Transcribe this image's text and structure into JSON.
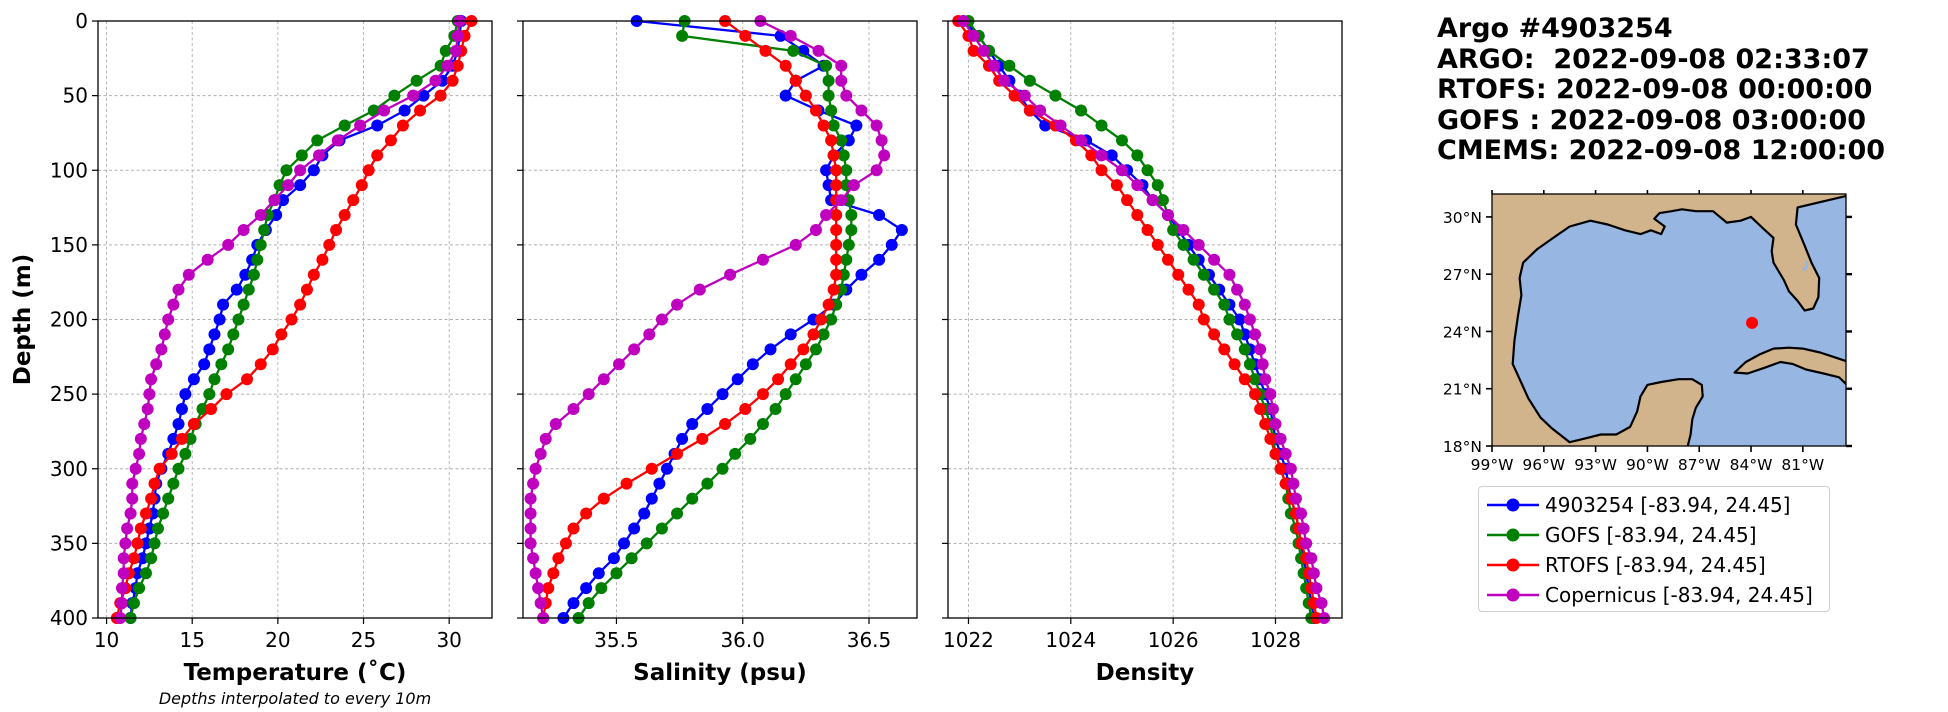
{
  "title": {
    "lines": [
      "Argo #4903254",
      "ARGO:  2022-09-08 02:33:07",
      "RTOFS: 2022-09-08 00:00:00",
      "GOFS : 2022-09-08 03:00:00",
      "CMEMS: 2022-09-08 12:00:00"
    ]
  },
  "colors": {
    "argo": "#0000ff",
    "gofs": "#008000",
    "rtofs": "#ff0000",
    "copernicus": "#bf00bf",
    "land": "#d2b48c",
    "ocean": "#97b6e1",
    "grid": "#b0b0b0"
  },
  "chart_data": [
    {
      "type": "line",
      "xlabel": "Temperature (˚C)",
      "ylabel": "Depth (m)",
      "note": "Depths interpolated to every 10m",
      "xlim": [
        9.5,
        32.5
      ],
      "ylim": [
        400,
        0
      ],
      "xticks": [
        10,
        15,
        20,
        25,
        30
      ],
      "yticks": [
        0,
        50,
        100,
        150,
        200,
        250,
        300,
        350,
        400
      ],
      "grid": true,
      "depth": [
        0,
        10,
        20,
        30,
        40,
        50,
        60,
        70,
        80,
        90,
        100,
        110,
        120,
        130,
        140,
        150,
        160,
        170,
        180,
        190,
        200,
        210,
        220,
        230,
        240,
        250,
        260,
        270,
        280,
        290,
        300,
        310,
        320,
        330,
        340,
        350,
        360,
        370,
        380,
        390,
        400
      ],
      "series": [
        {
          "name": "4903254 [-83.94, 24.45]",
          "key": "argo",
          "values": [
            30.7,
            30.6,
            30.5,
            30.2,
            29.6,
            28.5,
            27.4,
            25.8,
            23.6,
            22.6,
            22.1,
            21.3,
            20.3,
            19.9,
            19.3,
            18.8,
            18.5,
            18.1,
            17.6,
            16.8,
            16.6,
            16.3,
            16.0,
            15.7,
            15.1,
            14.6,
            14.4,
            14.2,
            13.9,
            13.6,
            13.2,
            12.9,
            12.8,
            12.7,
            12.5,
            12.3,
            12.1,
            11.8,
            11.7,
            11.5,
            11.4
          ]
        },
        {
          "name": "GOFS [-83.94, 24.45]",
          "key": "gofs",
          "values": [
            30.5,
            30.3,
            29.8,
            29.5,
            28.1,
            26.8,
            25.6,
            23.9,
            22.3,
            21.4,
            20.5,
            20.1,
            19.8,
            19.4,
            19.2,
            19.0,
            18.8,
            18.6,
            18.3,
            18.0,
            17.7,
            17.4,
            17.1,
            16.7,
            16.3,
            16.0,
            15.6,
            15.2,
            14.9,
            14.6,
            14.2,
            13.9,
            13.6,
            13.3,
            13.0,
            12.8,
            12.6,
            12.3,
            11.9,
            11.6,
            11.4
          ]
        },
        {
          "name": "RTOFS [-83.94, 24.45]",
          "key": "rtofs",
          "values": [
            31.3,
            30.9,
            30.7,
            30.5,
            30.2,
            29.5,
            28.3,
            27.3,
            26.6,
            25.8,
            25.3,
            24.9,
            24.4,
            23.9,
            23.4,
            23.0,
            22.6,
            22.1,
            21.7,
            21.3,
            20.8,
            20.2,
            19.7,
            19.0,
            18.2,
            17.0,
            16.1,
            15.1,
            14.4,
            13.8,
            13.1,
            12.8,
            12.6,
            12.3,
            12.0,
            11.8,
            11.6,
            11.3,
            11.1,
            10.8,
            10.6
          ]
        },
        {
          "name": "Copernicus [-83.94, 24.45]",
          "key": "copernicus",
          "values": [
            30.6,
            30.5,
            30.4,
            29.9,
            29.2,
            27.9,
            26.2,
            24.8,
            23.5,
            22.4,
            21.3,
            20.6,
            19.8,
            19.0,
            18.0,
            17.1,
            15.9,
            14.8,
            14.2,
            13.9,
            13.6,
            13.4,
            13.2,
            12.9,
            12.6,
            12.5,
            12.4,
            12.2,
            12.0,
            11.9,
            11.7,
            11.5,
            11.5,
            11.4,
            11.2,
            11.1,
            11.0,
            11.0,
            10.9,
            10.9,
            10.8
          ]
        }
      ]
    },
    {
      "type": "line",
      "xlabel": "Salinity (psu)",
      "xlim": [
        35.13,
        36.69
      ],
      "ylim": [
        400,
        0
      ],
      "xticks": [
        35.5,
        36.0,
        36.5
      ],
      "xticklabels": [
        "35.5",
        "36.0",
        "36.5"
      ],
      "yticks": [
        0,
        50,
        100,
        150,
        200,
        250,
        300,
        350,
        400
      ],
      "grid": true,
      "depth": [
        0,
        10,
        20,
        30,
        40,
        50,
        60,
        70,
        80,
        90,
        100,
        110,
        120,
        130,
        140,
        150,
        160,
        170,
        180,
        190,
        200,
        210,
        220,
        230,
        240,
        250,
        260,
        270,
        280,
        290,
        300,
        310,
        320,
        330,
        340,
        350,
        360,
        370,
        380,
        390,
        400
      ],
      "series": [
        {
          "name": "4903254 [-83.94, 24.45]",
          "key": "argo",
          "values": [
            35.58,
            36.15,
            36.24,
            36.32,
            36.21,
            36.17,
            36.3,
            36.45,
            36.42,
            36.36,
            36.33,
            36.34,
            36.35,
            36.54,
            36.63,
            36.59,
            36.54,
            36.47,
            36.41,
            36.36,
            36.28,
            36.19,
            36.11,
            36.04,
            35.98,
            35.92,
            35.86,
            35.8,
            35.76,
            35.73,
            35.7,
            35.67,
            35.64,
            35.61,
            35.57,
            35.53,
            35.49,
            35.43,
            35.38,
            35.33,
            35.29
          ]
        },
        {
          "name": "GOFS [-83.94, 24.45]",
          "key": "gofs",
          "values": [
            35.77,
            35.76,
            36.2,
            36.33,
            36.34,
            36.34,
            36.35,
            36.36,
            36.39,
            36.4,
            36.41,
            36.41,
            36.42,
            36.43,
            36.43,
            36.42,
            36.41,
            36.4,
            36.39,
            36.37,
            36.35,
            36.32,
            36.29,
            36.25,
            36.21,
            36.17,
            36.13,
            36.08,
            36.03,
            35.97,
            35.92,
            35.86,
            35.8,
            35.74,
            35.68,
            35.62,
            35.56,
            35.5,
            35.44,
            35.39,
            35.35
          ]
        },
        {
          "name": "RTOFS [-83.94, 24.45]",
          "key": "rtofs",
          "values": [
            35.93,
            36.01,
            36.09,
            36.17,
            36.21,
            36.25,
            36.29,
            36.32,
            36.35,
            36.36,
            36.37,
            36.37,
            36.37,
            36.37,
            36.37,
            36.37,
            36.37,
            36.37,
            36.36,
            36.34,
            36.31,
            36.28,
            36.24,
            36.19,
            36.14,
            36.08,
            36.01,
            35.93,
            35.84,
            35.74,
            35.64,
            35.54,
            35.45,
            35.38,
            35.33,
            35.3,
            35.27,
            35.25,
            35.23,
            35.22,
            35.21
          ]
        },
        {
          "name": "Copernicus [-83.94, 24.45]",
          "key": "copernicus",
          "values": [
            36.07,
            36.19,
            36.3,
            36.39,
            36.39,
            36.41,
            36.47,
            36.53,
            36.55,
            36.56,
            36.53,
            36.44,
            36.39,
            36.33,
            36.29,
            36.21,
            36.08,
            35.95,
            35.83,
            35.74,
            35.68,
            35.63,
            35.57,
            35.51,
            35.45,
            35.39,
            35.33,
            35.26,
            35.22,
            35.2,
            35.18,
            35.17,
            35.16,
            35.16,
            35.16,
            35.16,
            35.17,
            35.18,
            35.19,
            35.2,
            35.21
          ]
        }
      ]
    },
    {
      "type": "line",
      "xlabel": "Density",
      "xlim": [
        1021.6,
        1029.3
      ],
      "ylim": [
        400,
        0
      ],
      "xticks": [
        1022,
        1024,
        1026,
        1028
      ],
      "yticks": [
        0,
        50,
        100,
        150,
        200,
        250,
        300,
        350,
        400
      ],
      "grid": true,
      "depth": [
        0,
        10,
        20,
        30,
        40,
        50,
        60,
        70,
        80,
        90,
        100,
        110,
        120,
        130,
        140,
        150,
        160,
        170,
        180,
        190,
        200,
        210,
        220,
        230,
        240,
        250,
        260,
        270,
        280,
        290,
        300,
        310,
        320,
        330,
        340,
        350,
        360,
        370,
        380,
        390,
        400
      ],
      "series": [
        {
          "name": "4903254 [-83.94, 24.45]",
          "key": "argo",
          "values": [
            1021.9,
            1022.2,
            1022.4,
            1022.6,
            1022.8,
            1023.0,
            1023.2,
            1023.5,
            1024.3,
            1024.8,
            1025.1,
            1025.4,
            1025.6,
            1025.9,
            1026.1,
            1026.3,
            1026.5,
            1026.7,
            1026.9,
            1027.1,
            1027.3,
            1027.4,
            1027.5,
            1027.6,
            1027.7,
            1027.8,
            1027.9,
            1027.95,
            1028.0,
            1028.1,
            1028.2,
            1028.25,
            1028.3,
            1028.4,
            1028.45,
            1028.5,
            1028.55,
            1028.6,
            1028.65,
            1028.7,
            1028.75
          ]
        },
        {
          "name": "GOFS [-83.94, 24.45]",
          "key": "gofs",
          "values": [
            1022.0,
            1022.2,
            1022.4,
            1022.8,
            1023.2,
            1023.7,
            1024.2,
            1024.6,
            1025.0,
            1025.3,
            1025.5,
            1025.7,
            1025.8,
            1025.9,
            1026.0,
            1026.2,
            1026.4,
            1026.6,
            1026.8,
            1027.0,
            1027.1,
            1027.25,
            1027.4,
            1027.5,
            1027.6,
            1027.7,
            1027.8,
            1027.9,
            1027.95,
            1028.0,
            1028.1,
            1028.2,
            1028.25,
            1028.3,
            1028.4,
            1028.45,
            1028.5,
            1028.55,
            1028.6,
            1028.65,
            1028.7
          ]
        },
        {
          "name": "RTOFS [-83.94, 24.45]",
          "key": "rtofs",
          "values": [
            1021.8,
            1022.0,
            1022.1,
            1022.4,
            1022.6,
            1022.9,
            1023.2,
            1023.7,
            1024.1,
            1024.4,
            1024.6,
            1024.9,
            1025.1,
            1025.3,
            1025.5,
            1025.7,
            1025.9,
            1026.1,
            1026.3,
            1026.5,
            1026.6,
            1026.8,
            1027.0,
            1027.2,
            1027.4,
            1027.6,
            1027.7,
            1027.8,
            1027.9,
            1028.0,
            1028.1,
            1028.2,
            1028.3,
            1028.4,
            1028.45,
            1028.5,
            1028.6,
            1028.65,
            1028.7,
            1028.75,
            1028.8
          ]
        },
        {
          "name": "Copernicus [-83.94, 24.45]",
          "key": "copernicus",
          "values": [
            1021.9,
            1022.1,
            1022.3,
            1022.5,
            1022.7,
            1023.1,
            1023.4,
            1023.8,
            1024.2,
            1024.6,
            1025.0,
            1025.3,
            1025.6,
            1025.9,
            1026.2,
            1026.5,
            1026.8,
            1027.1,
            1027.25,
            1027.4,
            1027.5,
            1027.6,
            1027.7,
            1027.75,
            1027.8,
            1027.9,
            1027.95,
            1028.0,
            1028.1,
            1028.2,
            1028.3,
            1028.35,
            1028.4,
            1028.5,
            1028.55,
            1028.6,
            1028.7,
            1028.75,
            1028.8,
            1028.9,
            1028.95
          ]
        }
      ]
    }
  ],
  "map": {
    "lat_labels": [
      "30°N",
      "27°N",
      "24°N",
      "21°N",
      "18°N"
    ],
    "lon_labels": [
      "99°W",
      "96°W",
      "93°W",
      "90°W",
      "87°W",
      "84°W",
      "81°W"
    ],
    "lat_values": [
      30,
      27,
      24,
      21,
      18
    ],
    "lon_values": [
      -99,
      -96,
      -93,
      -90,
      -87,
      -84,
      -81
    ],
    "extent": {
      "lon": [
        -99,
        -78.5
      ],
      "lat": [
        18,
        31.2
      ]
    },
    "float_position": {
      "lon": -83.94,
      "lat": 24.45
    }
  },
  "legend": {
    "items": [
      {
        "label": "4903254 [-83.94, 24.45]",
        "key": "argo"
      },
      {
        "label": "GOFS [-83.94, 24.45]",
        "key": "gofs"
      },
      {
        "label": "RTOFS [-83.94, 24.45]",
        "key": "rtofs"
      },
      {
        "label": "Copernicus [-83.94, 24.45]",
        "key": "copernicus"
      }
    ]
  }
}
